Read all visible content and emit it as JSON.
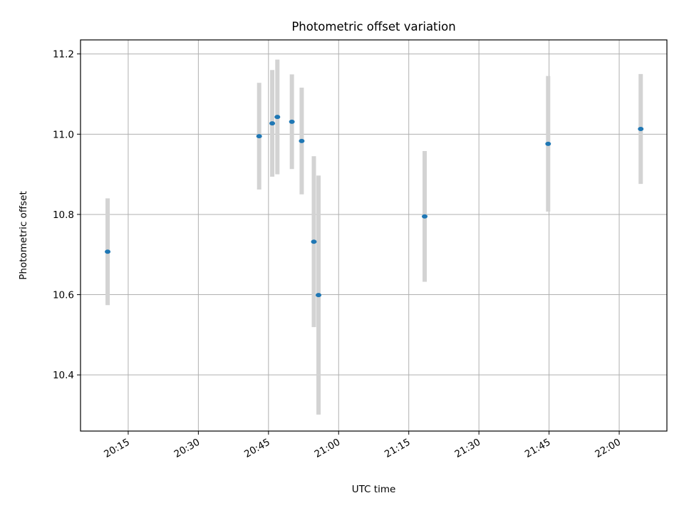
{
  "chart_data": {
    "type": "scatter",
    "title": "Photometric offset variation",
    "xlabel": "UTC time",
    "ylabel": "Photometric offset",
    "x_unit": "time",
    "xlim": [
      "20:04:48",
      "22:10:12"
    ],
    "ylim": [
      10.26,
      11.235
    ],
    "x_ticks": [
      "20:15",
      "20:30",
      "20:45",
      "21:00",
      "21:15",
      "21:30",
      "21:45",
      "22:00"
    ],
    "y_ticks": [
      10.4,
      10.6,
      10.8,
      11.0,
      11.2
    ],
    "y_tick_labels": [
      "10.4",
      "10.6",
      "10.8",
      "11.0",
      "11.2"
    ],
    "grid": true,
    "colors": {
      "point": "#1f77b4",
      "errorbar": "#d3d3d3"
    },
    "series": [
      {
        "points": [
          {
            "time": "20:10:36",
            "y": 10.707,
            "err": 0.133
          },
          {
            "time": "20:43:00",
            "y": 10.995,
            "err": 0.133
          },
          {
            "time": "20:45:48",
            "y": 11.027,
            "err": 0.133
          },
          {
            "time": "20:46:54",
            "y": 11.043,
            "err": 0.143
          },
          {
            "time": "20:50:00",
            "y": 11.031,
            "err": 0.118
          },
          {
            "time": "20:52:06",
            "y": 10.983,
            "err": 0.133
          },
          {
            "time": "20:54:42",
            "y": 10.732,
            "err": 0.213
          },
          {
            "time": "20:55:42",
            "y": 10.599,
            "err": 0.298
          },
          {
            "time": "21:18:24",
            "y": 10.795,
            "err": 0.163
          },
          {
            "time": "21:44:48",
            "y": 10.976,
            "err": 0.169
          },
          {
            "time": "22:04:36",
            "y": 11.013,
            "err": 0.137
          }
        ]
      }
    ]
  }
}
